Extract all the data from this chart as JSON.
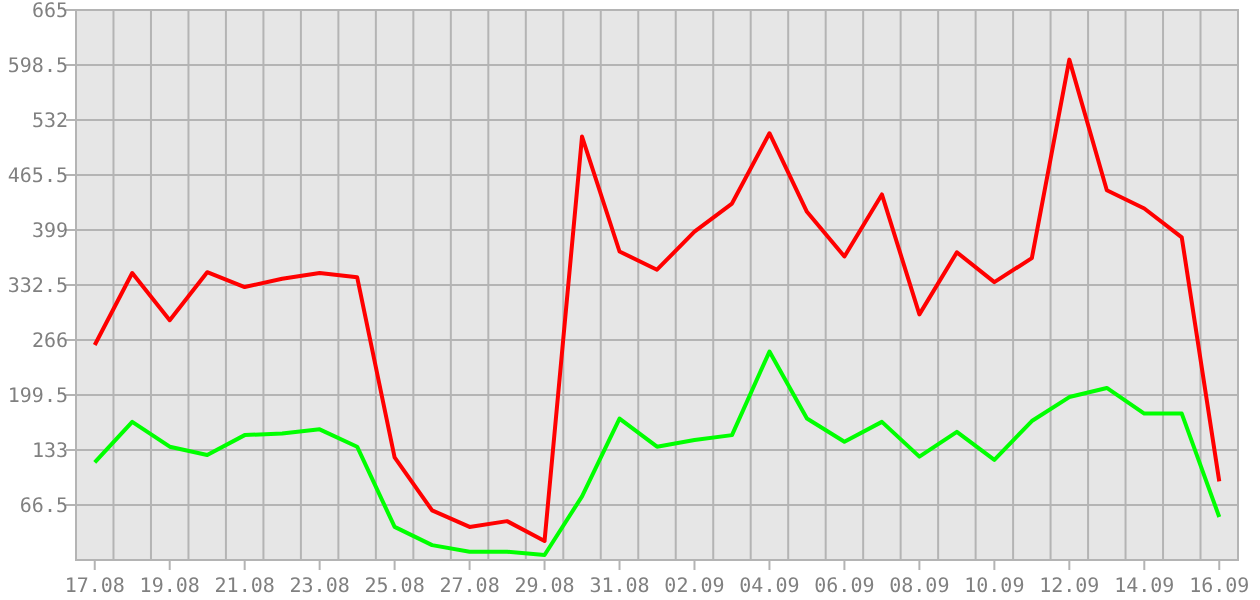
{
  "chart_data": {
    "type": "line",
    "categories": [
      "17.08",
      null,
      "19.08",
      null,
      "21.08",
      null,
      "23.08",
      null,
      "25.08",
      null,
      "27.08",
      null,
      "29.08",
      null,
      "31.08",
      null,
      "02.09",
      null,
      "04.09",
      null,
      "06.09",
      null,
      "08.09",
      null,
      "10.09",
      null,
      "12.09",
      null,
      "14.09",
      null,
      "16.09"
    ],
    "series": [
      {
        "color": "#ff0000",
        "values": [
          260,
          347,
          290,
          348,
          330,
          340,
          347,
          342,
          124,
          60,
          40,
          47,
          23,
          512,
          373,
          351,
          397,
          431,
          516,
          421,
          367,
          442,
          297,
          372,
          336,
          365,
          605,
          447,
          425,
          390,
          95
        ]
      },
      {
        "color": "#00ff00",
        "values": [
          118,
          167,
          137,
          127,
          151,
          153,
          158,
          137,
          40,
          18,
          10,
          10,
          6,
          77,
          171,
          137,
          145,
          151,
          252,
          171,
          143,
          167,
          125,
          155,
          121,
          168,
          197,
          208,
          177,
          177,
          52
        ]
      }
    ],
    "ylim": [
      0,
      665
    ],
    "yticks": [
      {
        "value": 66.5,
        "label": "66.5"
      },
      133,
      {
        "value": 199.5,
        "label": "199.5"
      },
      266,
      {
        "value": 332.5,
        "label": "332.5"
      },
      399,
      {
        "value": 465.5,
        "label": "465.5"
      },
      532,
      {
        "value": 598.5,
        "label": "598.5"
      },
      665
    ],
    "grid": true,
    "marker": "none",
    "line_style": "solid"
  }
}
